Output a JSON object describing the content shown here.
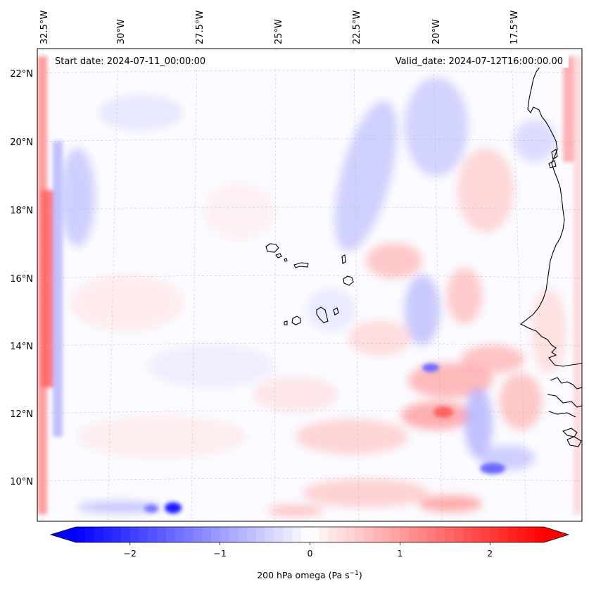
{
  "map": {
    "start_label": "Start date: 2024-07-11_00:00:00",
    "valid_label": "Valid_date: 2024-07-12T16:00:00.00",
    "projection": "lambert-conformal",
    "longitude_labels": [
      "32.5°W",
      "30°W",
      "27.5°W",
      "25°W",
      "22.5°W",
      "20°W",
      "17.5°W"
    ],
    "latitude_labels": [
      "22°N",
      "20°N",
      "18°N",
      "16°N",
      "14°N",
      "12°N",
      "10°N"
    ],
    "gridlines": true,
    "coastline_color": "#000000",
    "field": "200 hPa vertical velocity (omega)"
  },
  "colorbar": {
    "ticks": [
      "−2",
      "−1",
      "0",
      "1",
      "2"
    ],
    "tick_values": [
      -2,
      -1,
      0,
      1,
      2
    ],
    "range": [
      -2.6,
      2.6
    ],
    "extend": "both",
    "colormap": "bwr",
    "label_prefix": "200 hPa omega (Pa s",
    "label_exponent": "−1",
    "label_suffix": ")",
    "min_color": "#0000ff",
    "mid_color": "#ffffff",
    "max_color": "#ff0000"
  }
}
